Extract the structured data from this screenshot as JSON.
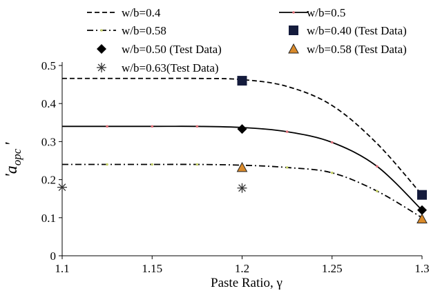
{
  "chart_data": {
    "type": "line",
    "xlabel": "Paste Ratio, γ",
    "ylabel": "'a_opc'",
    "ylabel_parts": {
      "prefix": "'",
      "base": "a",
      "subscript": "opc",
      "suffix": "'"
    },
    "xlim": [
      1.1,
      1.3
    ],
    "ylim": [
      0,
      0.5
    ],
    "x_ticks": [
      1.1,
      1.15,
      1.2,
      1.25,
      1.3
    ],
    "x_tick_labels": [
      "1.1",
      "1.15",
      "1.2",
      "1.25",
      "1.3"
    ],
    "y_ticks": [
      0,
      0.1,
      0.2,
      0.3,
      0.4,
      0.5
    ],
    "y_tick_labels": [
      "0",
      "0.1",
      "0.2",
      "0.3",
      "0.4",
      "0.5"
    ],
    "grid": false,
    "legend_position": "top",
    "series": [
      {
        "name": "w/b=0.4",
        "kind": "line",
        "style": "dashed",
        "color": "#000000",
        "x": [
          1.1,
          1.125,
          1.15,
          1.175,
          1.2,
          1.225,
          1.25,
          1.275,
          1.3
        ],
        "y": [
          0.466,
          0.466,
          0.466,
          0.466,
          0.463,
          0.445,
          0.395,
          0.295,
          0.16
        ]
      },
      {
        "name": "w/b=0.5",
        "kind": "line",
        "style": "solid",
        "color": "#000000",
        "marker_color": "#e0707a",
        "x": [
          1.1,
          1.125,
          1.15,
          1.175,
          1.2,
          1.225,
          1.25,
          1.275,
          1.3
        ],
        "y": [
          0.34,
          0.34,
          0.34,
          0.34,
          0.337,
          0.326,
          0.298,
          0.235,
          0.12
        ]
      },
      {
        "name": "w/b=0.58",
        "kind": "line",
        "style": "dashdot",
        "color": "#000000",
        "marker_color": "#c8d36a",
        "x": [
          1.1,
          1.125,
          1.15,
          1.175,
          1.2,
          1.225,
          1.25,
          1.275,
          1.3
        ],
        "y": [
          0.24,
          0.24,
          0.24,
          0.24,
          0.238,
          0.232,
          0.218,
          0.17,
          0.1
        ]
      },
      {
        "name": "w/b=0.40 (Test Data)",
        "kind": "points",
        "marker": "square",
        "color": "#141b3c",
        "x": [
          1.2,
          1.3
        ],
        "y": [
          0.46,
          0.16
        ]
      },
      {
        "name": "w/b=0.50 (Test Data)",
        "kind": "points",
        "marker": "diamond",
        "color": "#000000",
        "x": [
          1.2,
          1.3
        ],
        "y": [
          0.333,
          0.12
        ]
      },
      {
        "name": "w/b=0.58 (Test Data)",
        "kind": "points",
        "marker": "triangle",
        "color": "#d98a2b",
        "edge_color": "#222222",
        "x": [
          1.2,
          1.3
        ],
        "y": [
          0.232,
          0.097
        ]
      },
      {
        "name": "w/b=0.63(Test Data)",
        "kind": "points",
        "marker": "asterisk",
        "color": "#333333",
        "x": [
          1.1,
          1.2
        ],
        "y": [
          0.18,
          0.178
        ]
      }
    ],
    "legend_order": [
      0,
      1,
      2,
      3,
      4,
      5,
      6
    ]
  }
}
